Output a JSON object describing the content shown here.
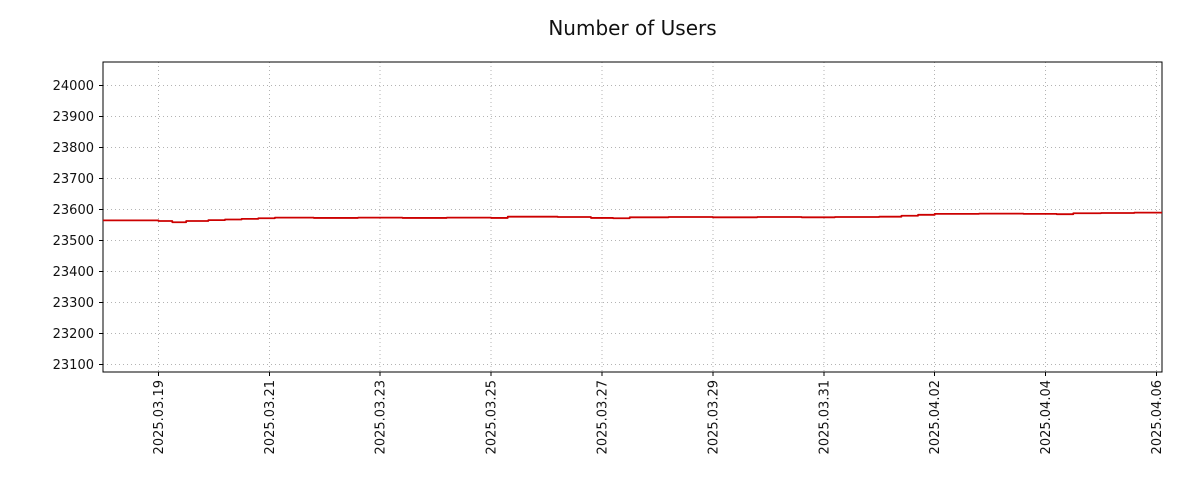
{
  "chart_data": {
    "type": "line",
    "title": "Number of Users",
    "interpolation": "step-after",
    "grid": true,
    "legend": "none",
    "line_color": "#cc0000",
    "xlim": [
      0,
      19.1
    ],
    "ylim": [
      23075,
      24075
    ],
    "x_axis_note": "x measured in days, 0 = 2025.03.18",
    "x_ticks": [
      {
        "x": 1,
        "label": "2025.03.19"
      },
      {
        "x": 3,
        "label": "2025.03.21"
      },
      {
        "x": 5,
        "label": "2025.03.23"
      },
      {
        "x": 7,
        "label": "2025.03.25"
      },
      {
        "x": 9,
        "label": "2025.03.27"
      },
      {
        "x": 11,
        "label": "2025.03.29"
      },
      {
        "x": 13,
        "label": "2025.03.31"
      },
      {
        "x": 15,
        "label": "2025.04.02"
      },
      {
        "x": 17,
        "label": "2025.04.04"
      },
      {
        "x": 19,
        "label": "2025.04.06"
      }
    ],
    "y_ticks": [
      23100,
      23200,
      23300,
      23400,
      23500,
      23600,
      23700,
      23800,
      23900,
      24000
    ],
    "series": [
      {
        "name": "Number of Users",
        "color": "#cc0000",
        "points": [
          [
            0.0,
            23564
          ],
          [
            1.0,
            23562
          ],
          [
            1.25,
            23558
          ],
          [
            1.5,
            23562
          ],
          [
            1.9,
            23565
          ],
          [
            2.2,
            23567
          ],
          [
            2.5,
            23569
          ],
          [
            2.8,
            23571
          ],
          [
            3.1,
            23573
          ],
          [
            3.8,
            23572
          ],
          [
            4.6,
            23573
          ],
          [
            5.4,
            23572
          ],
          [
            6.2,
            23573
          ],
          [
            7.0,
            23572
          ],
          [
            7.3,
            23576
          ],
          [
            8.2,
            23575
          ],
          [
            8.8,
            23572
          ],
          [
            9.2,
            23571
          ],
          [
            9.5,
            23574
          ],
          [
            10.2,
            23575
          ],
          [
            11.0,
            23574
          ],
          [
            11.8,
            23575
          ],
          [
            12.6,
            23574
          ],
          [
            13.2,
            23575
          ],
          [
            14.0,
            23576
          ],
          [
            14.4,
            23579
          ],
          [
            14.7,
            23582
          ],
          [
            15.0,
            23585
          ],
          [
            15.8,
            23586
          ],
          [
            16.6,
            23585
          ],
          [
            17.2,
            23584
          ],
          [
            17.5,
            23587
          ],
          [
            18.0,
            23588
          ],
          [
            18.6,
            23589
          ],
          [
            19.1,
            23589
          ]
        ]
      }
    ]
  }
}
